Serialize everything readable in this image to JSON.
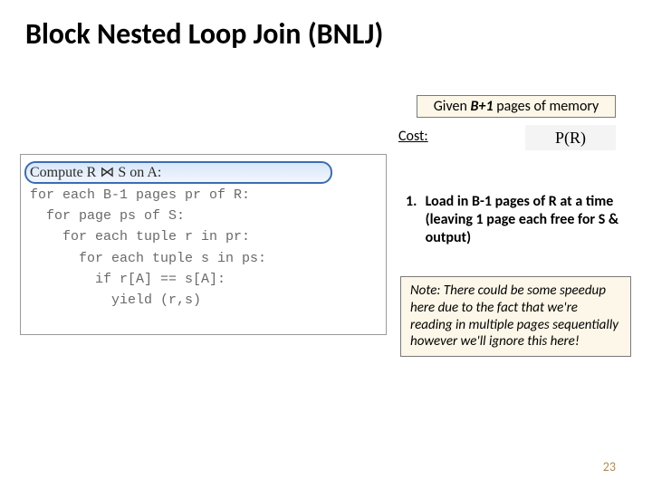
{
  "title": "Block Nested Loop Join (BNLJ)",
  "given": {
    "prefix": "Given ",
    "bplus": "B+1",
    "suffix": " pages of memory"
  },
  "cost_label": "Cost:",
  "pr_formula": "P(R)",
  "code": {
    "compute": "Compute R ⋈ S on A:",
    "l1": "for each B-1 pages pr of R:",
    "l2": "  for page ps of S:",
    "l3": "    for each tuple r in pr:",
    "l4": "      for each tuple s in ps:",
    "l5": "        if r[A] == s[A]:",
    "l6": "          yield (r,s)"
  },
  "step": {
    "num": "1.",
    "text": "Load in B-1 pages of R at a time (leaving 1 page each free for S & output)"
  },
  "note": "Note: There could be some speedup here due to the fact that we're reading in multiple pages sequentially however we'll ignore this here!",
  "page_number": "23",
  "colors": {
    "highlight_border": "#3c6db0",
    "note_bg": "#fcf7e8",
    "page_num": "#b08b55",
    "code_text": "#6a6a6a"
  }
}
